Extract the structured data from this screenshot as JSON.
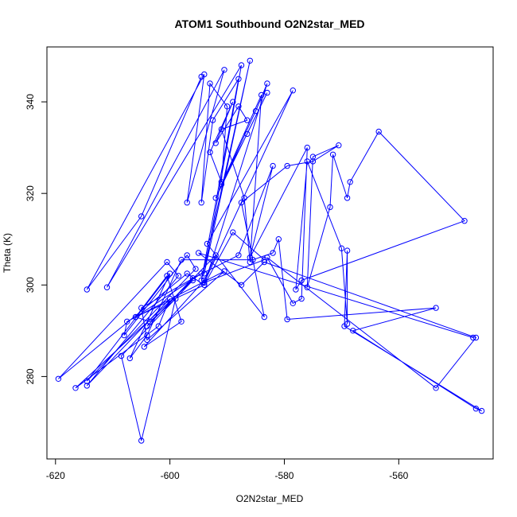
{
  "chart_data": {
    "type": "line",
    "title": "ATOM1 Southbound O2N2star_MED",
    "xlabel": "O2N2star_MED",
    "ylabel": "Theta (K)",
    "xlim": [
      -621.5,
      -543.5
    ],
    "ylim": [
      262,
      352
    ],
    "xticks": [
      -620,
      -600,
      -580,
      -560
    ],
    "yticks": [
      280,
      300,
      320,
      340
    ],
    "grid": false,
    "marker": "open-circle",
    "color": "#0000ff",
    "series": [
      {
        "points": [
          [
            -594.5,
            345.5
          ],
          [
            -605,
            315
          ],
          [
            -614.5,
            299
          ],
          [
            -594,
            346
          ],
          [
            -597,
            318
          ],
          [
            -590.5,
            347
          ],
          [
            -611,
            299.5
          ],
          [
            -587.5,
            348
          ],
          [
            -594,
            302.5
          ],
          [
            -586,
            349
          ],
          [
            -594.5,
            301
          ],
          [
            -588,
            345
          ],
          [
            -592.5,
            336
          ],
          [
            -594.5,
            318
          ],
          [
            -593,
            344
          ],
          [
            -590,
            339
          ],
          [
            -591,
            322.5
          ],
          [
            -593,
            329
          ],
          [
            -589,
            340
          ],
          [
            -592,
            331
          ],
          [
            -588,
            339
          ],
          [
            -586.5,
            336
          ],
          [
            -591,
            334
          ],
          [
            -587,
            319
          ],
          [
            -586,
            305
          ],
          [
            -584,
            341.5
          ],
          [
            -591,
            322
          ],
          [
            -586.5,
            333
          ],
          [
            -583,
            342
          ],
          [
            -592,
            319
          ],
          [
            -585,
            338
          ],
          [
            -583,
            344
          ],
          [
            -594,
            300
          ],
          [
            -589,
            311.5
          ],
          [
            -583.5,
            305.5
          ],
          [
            -594,
            300.5
          ],
          [
            -578.5,
            342.5
          ],
          [
            -593.5,
            309
          ],
          [
            -583.5,
            293
          ],
          [
            -587.5,
            318
          ],
          [
            -579.5,
            326
          ],
          [
            -575,
            327
          ],
          [
            -570.5,
            330.5
          ],
          [
            -575,
            328
          ],
          [
            -576,
            299.5
          ],
          [
            -572,
            317
          ],
          [
            -571.5,
            328.5
          ],
          [
            -569,
            319
          ],
          [
            -568.5,
            322.5
          ],
          [
            -563.5,
            333.5
          ],
          [
            -548.5,
            314
          ],
          [
            -577,
            301
          ],
          [
            -578,
            299
          ],
          [
            -576,
            327
          ],
          [
            -570,
            308
          ],
          [
            -569,
            291.5
          ],
          [
            -569,
            307.5
          ],
          [
            -569.5,
            291
          ],
          [
            -545.5,
            272.5
          ],
          [
            -546.5,
            273
          ],
          [
            -568,
            290
          ],
          [
            -553.5,
            295
          ],
          [
            -579.5,
            292.5
          ],
          [
            -581,
            310
          ],
          [
            -582,
            307
          ],
          [
            -585.5,
            305.5
          ],
          [
            -598,
            305.5
          ],
          [
            -604,
            289
          ],
          [
            -607,
            284
          ],
          [
            -600,
            302.5
          ],
          [
            -614.5,
            279
          ],
          [
            -595.5,
            303.5
          ],
          [
            -597,
            306.5
          ],
          [
            -608,
            289
          ],
          [
            -607.5,
            292
          ],
          [
            -590.5,
            303
          ],
          [
            -604,
            288
          ],
          [
            -605,
            295
          ],
          [
            -594.5,
            302.5
          ],
          [
            -606,
            293
          ],
          [
            -603.5,
            292
          ],
          [
            -599,
            297
          ],
          [
            -605,
            266
          ],
          [
            -608.5,
            284.5
          ],
          [
            -596,
            301
          ],
          [
            -616.5,
            277.5
          ],
          [
            -602,
            291
          ],
          [
            -600,
            297
          ],
          [
            -614.5,
            278
          ],
          [
            -598.5,
            302
          ],
          [
            -600.5,
            305
          ],
          [
            -619.5,
            279.5
          ],
          [
            -597,
            302.5
          ],
          [
            -594,
            300
          ],
          [
            -606,
            293
          ],
          [
            -600.5,
            302
          ],
          [
            -598,
            292
          ],
          [
            -604.5,
            286.5
          ],
          [
            -594,
            301
          ],
          [
            -592,
            306.5
          ],
          [
            -604,
            291
          ],
          [
            -596,
            301.5
          ],
          [
            -588,
            306.5
          ],
          [
            -582,
            326
          ],
          [
            -586,
            306
          ],
          [
            -576,
            330
          ],
          [
            -577,
            297
          ],
          [
            -578.5,
            296
          ],
          [
            -583,
            306
          ],
          [
            -553.5,
            277.5
          ],
          [
            -546.5,
            288.5
          ],
          [
            -583.5,
            305
          ],
          [
            -587.5,
            300
          ],
          [
            -595,
            307
          ],
          [
            -547,
            288.5
          ]
        ]
      }
    ]
  }
}
